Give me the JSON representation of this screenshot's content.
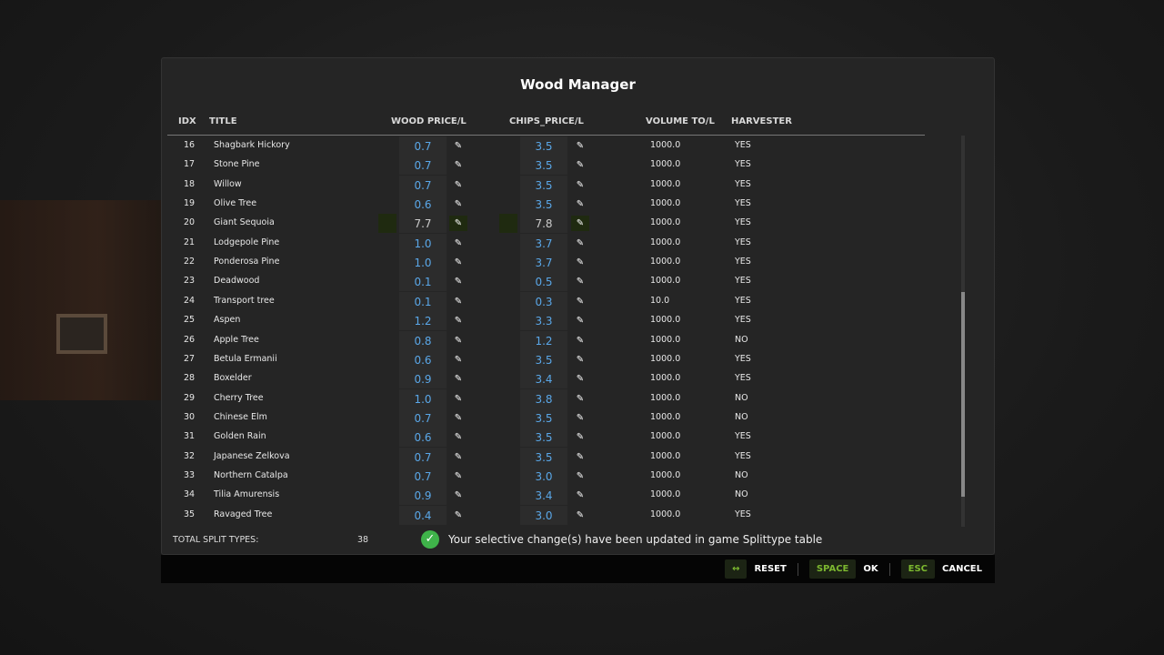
{
  "title": "Wood Manager",
  "headers": {
    "idx": "IDX",
    "title": "TITLE",
    "wood": "WOOD PRICE/L",
    "chips": "CHIPS_PRICE/L",
    "volume": "VOLUME TO/L",
    "harvester": "HARVESTER"
  },
  "rows": [
    [
      "16",
      "Shagbark Hickory",
      "0.7",
      "3.5",
      "1000.0",
      "YES"
    ],
    [
      "17",
      "Stone Pine",
      "0.7",
      "3.5",
      "1000.0",
      "YES"
    ],
    [
      "18",
      "Willow",
      "0.7",
      "3.5",
      "1000.0",
      "YES"
    ],
    [
      "19",
      "Olive Tree",
      "0.6",
      "3.5",
      "1000.0",
      "YES"
    ],
    [
      "20",
      "Giant Sequoia",
      "7.7",
      "7.8",
      "1000.0",
      "YES"
    ],
    [
      "21",
      "Lodgepole Pine",
      "1.0",
      "3.7",
      "1000.0",
      "YES"
    ],
    [
      "22",
      "Ponderosa Pine",
      "1.0",
      "3.7",
      "1000.0",
      "YES"
    ],
    [
      "23",
      "Deadwood",
      "0.1",
      "0.5",
      "1000.0",
      "YES"
    ],
    [
      "24",
      "Transport tree",
      "0.1",
      "0.3",
      "10.0",
      "YES"
    ],
    [
      "25",
      "Aspen",
      "1.2",
      "3.3",
      "1000.0",
      "YES"
    ],
    [
      "26",
      "Apple Tree",
      "0.8",
      "1.2",
      "1000.0",
      "NO"
    ],
    [
      "27",
      "Betula Ermanii",
      "0.6",
      "3.5",
      "1000.0",
      "YES"
    ],
    [
      "28",
      "Boxelder",
      "0.9",
      "3.4",
      "1000.0",
      "YES"
    ],
    [
      "29",
      "Cherry Tree",
      "1.0",
      "3.8",
      "1000.0",
      "NO"
    ],
    [
      "30",
      "Chinese Elm",
      "0.7",
      "3.5",
      "1000.0",
      "NO"
    ],
    [
      "31",
      "Golden Rain",
      "0.6",
      "3.5",
      "1000.0",
      "YES"
    ],
    [
      "32",
      "Japanese Zelkova",
      "0.7",
      "3.5",
      "1000.0",
      "YES"
    ],
    [
      "33",
      "Northern Catalpa",
      "0.7",
      "3.0",
      "1000.0",
      "NO"
    ],
    [
      "34",
      "Tilia Amurensis",
      "0.9",
      "3.4",
      "1000.0",
      "NO"
    ],
    [
      "35",
      "Ravaged Tree",
      "0.4",
      "3.0",
      "1000.0",
      "YES"
    ]
  ],
  "selected_idx": "20",
  "footer": {
    "total_label": "TOTAL SPLIT TYPES:",
    "total_value": "38",
    "message": "Your selective change(s) have been updated in game Splittype table"
  },
  "buttons": [
    {
      "key": "↔",
      "label": "RESET"
    },
    {
      "key": "SPACE",
      "label": "OK"
    },
    {
      "key": "ESC",
      "label": "CANCEL"
    }
  ],
  "colors": {
    "accent": "#7cb82f",
    "value": "#5aa7e8",
    "success": "#3fb34a"
  }
}
